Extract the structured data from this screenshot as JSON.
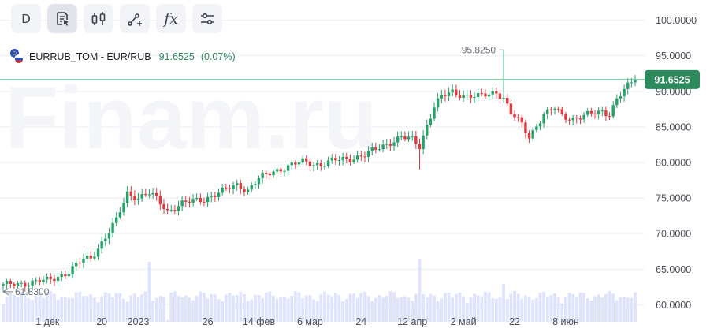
{
  "toolbar": {
    "interval_label": "D",
    "buttons": [
      {
        "name": "interval-button",
        "icon": "text",
        "active": false
      },
      {
        "name": "chart-settings-button",
        "icon": "document-cursor-icon",
        "active": true
      },
      {
        "name": "chart-type-button",
        "icon": "candles-icon",
        "active": false
      },
      {
        "name": "drawing-tools-button",
        "icon": "line-tool-icon",
        "active": false
      },
      {
        "name": "indicators-button",
        "icon": "fx-icon",
        "active": false
      },
      {
        "name": "settings-button",
        "icon": "sliders-icon",
        "active": false
      }
    ],
    "fx_label": "fx"
  },
  "legend": {
    "symbol": "EURRUB_TOM - EUR/RUB",
    "price": "91.6525",
    "change": "(0.07%)",
    "flag_icon": "eur-rub-flag-icon"
  },
  "watermark": "Finam.ru",
  "colors": {
    "up": "#26a269",
    "down": "#e2383e",
    "price_line": "#5cb88f",
    "price_tag": "#2c8a5c",
    "volume": "#dfe3fb",
    "grid": "#eceef3"
  },
  "chart_data": {
    "type": "candlestick",
    "y_ticks": [
      "100.0000",
      "95.0000",
      "90.0000",
      "85.0000",
      "80.0000",
      "75.0000",
      "70.0000",
      "65.0000",
      "60.0000"
    ],
    "y_tick_values": [
      100,
      95,
      90,
      85,
      80,
      75,
      70,
      65,
      60
    ],
    "ylim": [
      57.6,
      102.4
    ],
    "x_ticks": [
      "1 дек",
      "20",
      "2023",
      "26",
      "14 фев",
      "6 мар",
      "24",
      "12 апр",
      "2 май",
      "22",
      "8 июн"
    ],
    "last_price": 91.6525,
    "last_price_label": "91.6525",
    "annotations": {
      "high": {
        "value": 95.825,
        "label": "95.8250"
      },
      "low": {
        "value": 61.83,
        "label": "61.8300"
      }
    },
    "anchors": [
      [
        0,
        62.7
      ],
      [
        12,
        63.4
      ],
      [
        18,
        64.6
      ],
      [
        22,
        66.4
      ],
      [
        24,
        66.6
      ],
      [
        28,
        69.5
      ],
      [
        31,
        71.8
      ],
      [
        34,
        75.7
      ],
      [
        37,
        75.1
      ],
      [
        40,
        75.6
      ],
      [
        42,
        74.9
      ],
      [
        45,
        73.2
      ],
      [
        49,
        74.2
      ],
      [
        55,
        74.9
      ],
      [
        60,
        75.9
      ],
      [
        64,
        76.9
      ],
      [
        67,
        76.1
      ],
      [
        70,
        77.7
      ],
      [
        74,
        78.8
      ],
      [
        79,
        79.6
      ],
      [
        82,
        80.1
      ],
      [
        87,
        79.7
      ],
      [
        91,
        80.3
      ],
      [
        95,
        80.6
      ],
      [
        99,
        81.0
      ],
      [
        103,
        82.1
      ],
      [
        106,
        82.9
      ],
      [
        109,
        83.5
      ],
      [
        112,
        83.2
      ],
      [
        114,
        82.3
      ],
      [
        116,
        85.3
      ],
      [
        118,
        87.9
      ],
      [
        120,
        89.2
      ],
      [
        123,
        89.9
      ],
      [
        126,
        89.5
      ],
      [
        130,
        89.2
      ],
      [
        133,
        89.6
      ],
      [
        135,
        90.0
      ],
      [
        137,
        89.1
      ],
      [
        139,
        86.9
      ],
      [
        142,
        85.3
      ],
      [
        144,
        83.6
      ],
      [
        146,
        85.3
      ],
      [
        148,
        86.7
      ],
      [
        151,
        87.6
      ],
      [
        153,
        86.6
      ],
      [
        156,
        86.2
      ],
      [
        159,
        86.5
      ],
      [
        161,
        86.8
      ],
      [
        164,
        87.2
      ],
      [
        166,
        86.9
      ],
      [
        168,
        88.9
      ],
      [
        170,
        90.1
      ],
      [
        172,
        91.2
      ],
      [
        173,
        91.65
      ]
    ],
    "volume_relative": [
      0.28,
      0.6,
      1.0
    ]
  }
}
